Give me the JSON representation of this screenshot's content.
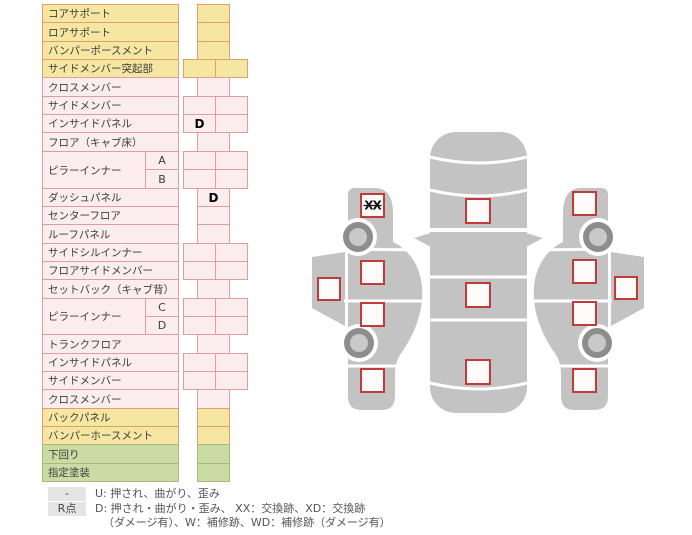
{
  "title": "vehicle-damage-inspection-sheet",
  "colors": {
    "yellow_bg": "#F5E6A1",
    "yellow_border": "#DFA06E",
    "pink_bg": "#FBEDED",
    "pink_border": "#DF9E9E",
    "green_bg": "#CADCA4",
    "green_border": "#A9B97B",
    "mark_box_border": "#C23B3B",
    "mark_box_fill": "#FDFAFA",
    "car_gray": "#C3C3C3",
    "wheel_ring": "#8D8D8D",
    "wheel_hub": "#C9C9C9",
    "badge_bg": "#E4E4E4"
  },
  "table": {
    "rows": [
      {
        "label": "コアサポート",
        "section": "yellow",
        "cells": "single",
        "values": [
          ""
        ]
      },
      {
        "label": "ロアサポート",
        "section": "yellow",
        "cells": "single",
        "values": [
          ""
        ]
      },
      {
        "label": "バンパーポースメント",
        "section": "yellow",
        "cells": "single",
        "values": [
          ""
        ]
      },
      {
        "label": "サイドメンバー突起部",
        "section": "yellow",
        "cells": "double",
        "values": [
          "",
          ""
        ]
      },
      {
        "label": "クロスメンバー",
        "section": "pink",
        "cells": "single",
        "values": [
          ""
        ]
      },
      {
        "label": "サイドメンバー",
        "section": "pink",
        "cells": "double",
        "values": [
          "",
          ""
        ]
      },
      {
        "label": "インサイドパネル",
        "section": "pink",
        "cells": "double",
        "values": [
          "D",
          ""
        ]
      },
      {
        "label": "フロア（キャブ床）",
        "section": "pink",
        "cells": "single",
        "values": [
          ""
        ]
      },
      {
        "label": "ピラーインナー",
        "sub": "A",
        "pillar": "start",
        "section": "pink",
        "cells": "double",
        "values": [
          "",
          ""
        ]
      },
      {
        "label": "",
        "sub": "B",
        "pillar": "cont",
        "section": "pink",
        "cells": "double",
        "values": [
          "",
          ""
        ]
      },
      {
        "label": "ダッシュパネル",
        "section": "pink",
        "cells": "single",
        "values": [
          "D"
        ]
      },
      {
        "label": "センターフロア",
        "section": "pink",
        "cells": "single",
        "values": [
          ""
        ]
      },
      {
        "label": "ルーフパネル",
        "section": "pink",
        "cells": "single",
        "values": [
          ""
        ]
      },
      {
        "label": "サイドシルインナー",
        "section": "pink",
        "cells": "double",
        "values": [
          "",
          ""
        ]
      },
      {
        "label": "フロアサイドメンバー",
        "section": "pink",
        "cells": "double",
        "values": [
          "",
          ""
        ]
      },
      {
        "label": "セットバック（キャブ背）",
        "section": "pink",
        "cells": "single",
        "values": [
          ""
        ]
      },
      {
        "label": "ピラーインナー",
        "sub": "C",
        "pillar": "start",
        "section": "pink",
        "cells": "double",
        "values": [
          "",
          ""
        ]
      },
      {
        "label": "",
        "sub": "D",
        "pillar": "cont",
        "section": "pink",
        "cells": "double",
        "values": [
          "",
          ""
        ]
      },
      {
        "label": "トランクフロア",
        "section": "pink",
        "cells": "single",
        "values": [
          ""
        ]
      },
      {
        "label": "インサイドパネル",
        "section": "pink",
        "cells": "double",
        "values": [
          "",
          ""
        ]
      },
      {
        "label": "サイドメンバー",
        "section": "pink",
        "cells": "double",
        "values": [
          "",
          ""
        ]
      },
      {
        "label": "クロスメンバー",
        "section": "pink",
        "cells": "single",
        "values": [
          ""
        ]
      },
      {
        "label": "バックパネル",
        "section": "yellow",
        "cells": "single",
        "values": [
          ""
        ]
      },
      {
        "label": "バンパーホースメント",
        "section": "yellow",
        "cells": "single",
        "values": [
          ""
        ]
      },
      {
        "label": "下回り",
        "section": "green",
        "cells": "single",
        "values": [
          ""
        ]
      },
      {
        "label": "指定塗装",
        "section": "green",
        "cells": "single",
        "values": [
          ""
        ]
      }
    ]
  },
  "diagram": {
    "checkboxes": [
      {
        "id": "top-hood",
        "mark": ""
      },
      {
        "id": "top-roof",
        "mark": ""
      },
      {
        "id": "top-trunk",
        "mark": ""
      },
      {
        "id": "left-front-fender",
        "mark": "XX"
      },
      {
        "id": "left-rocker",
        "mark": ""
      },
      {
        "id": "left-front-door",
        "mark": ""
      },
      {
        "id": "left-rear-door",
        "mark": ""
      },
      {
        "id": "left-rear-fender",
        "mark": ""
      },
      {
        "id": "right-front-fender",
        "mark": ""
      },
      {
        "id": "right-rocker",
        "mark": ""
      },
      {
        "id": "right-front-door",
        "mark": ""
      },
      {
        "id": "right-rear-door",
        "mark": ""
      },
      {
        "id": "right-rear-fender",
        "mark": ""
      }
    ]
  },
  "legend": {
    "row1_badge": "-",
    "row1_text": "U: 押され、曲がり、歪み",
    "row2_badge": "R点",
    "row2_line1": "D: 押され・曲がり・歪み、 XX：交換跡、XD：交換跡",
    "row2_line2": "（ダメージ有）、W：補修跡、WD：補修跡（ダメージ有）"
  }
}
